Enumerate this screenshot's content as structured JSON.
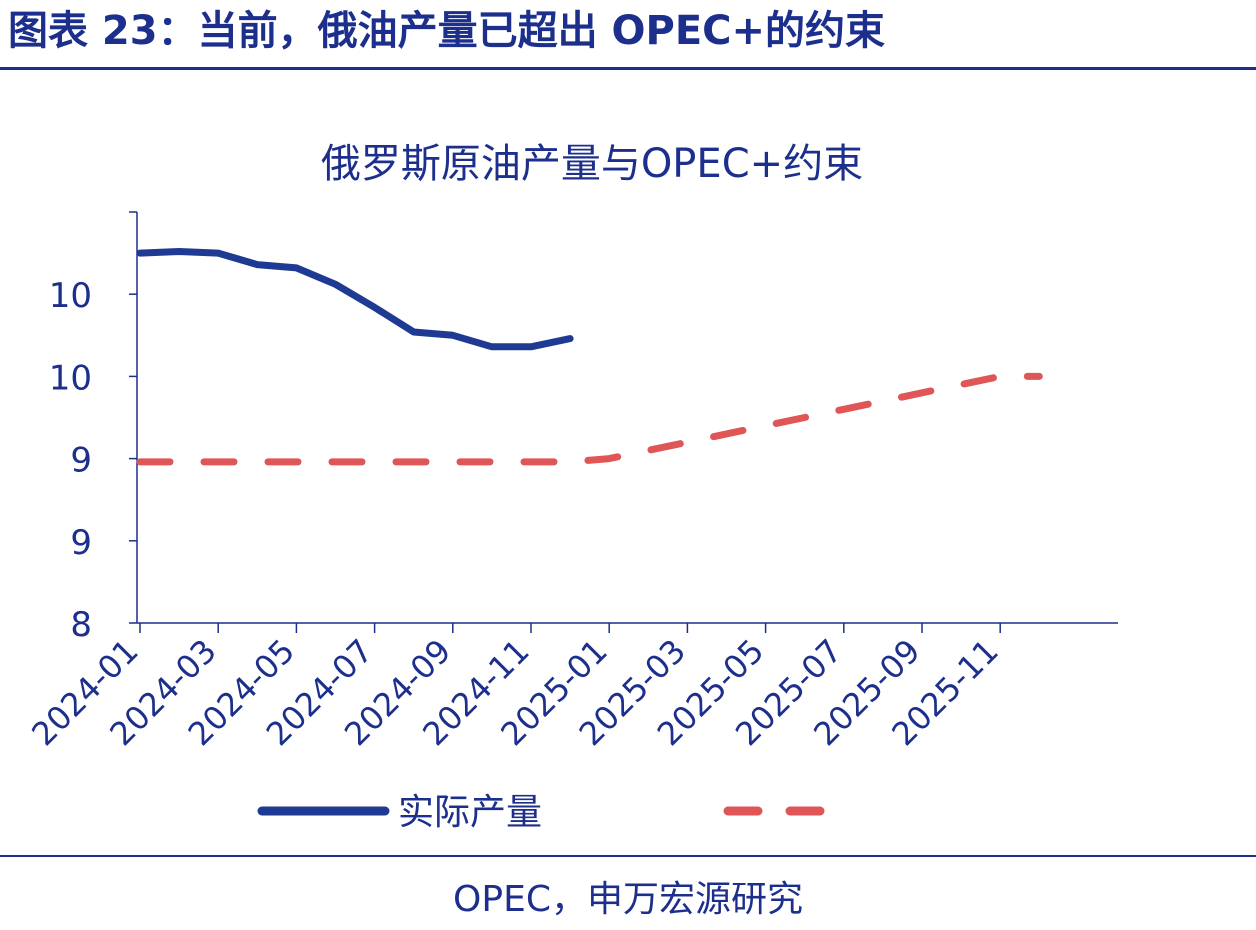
{
  "header": {
    "title": "图表 23：当前，俄油产量已超出 OPEC+的约束"
  },
  "source": "OPEC，申万宏源研究",
  "colors": {
    "primary": "#1c2f8c",
    "series_actual": "#1f3a93",
    "series_constraint": "#e05555"
  },
  "chart_data": {
    "type": "line",
    "title": "俄罗斯原油产量与OPEC+约束",
    "xlabel": "",
    "ylabel": "",
    "ylim": [
      8,
      10.5
    ],
    "yticks": [
      {
        "value": 8.0,
        "label": "8"
      },
      {
        "value": 8.5,
        "label": "9"
      },
      {
        "value": 9.0,
        "label": "9"
      },
      {
        "value": 9.5,
        "label": "10"
      },
      {
        "value": 10.0,
        "label": "10"
      }
    ],
    "xticks": [
      "2024-01",
      "2024-03",
      "2024-05",
      "2024-07",
      "2024-09",
      "2024-11",
      "2025-01",
      "2025-03",
      "2025-05",
      "2025-07",
      "2025-09",
      "2025-11"
    ],
    "x": [
      "2024-01",
      "2024-02",
      "2024-03",
      "2024-04",
      "2024-05",
      "2024-06",
      "2024-07",
      "2024-08",
      "2024-09",
      "2024-10",
      "2024-11",
      "2024-12",
      "2025-01",
      "2025-02",
      "2025-03",
      "2025-04",
      "2025-05",
      "2025-06",
      "2025-07",
      "2025-08",
      "2025-09",
      "2025-10",
      "2025-11",
      "2025-12"
    ],
    "series": [
      {
        "name": "实际产量",
        "style": "solid",
        "values": [
          10.25,
          10.26,
          10.25,
          10.18,
          10.16,
          10.06,
          9.92,
          9.77,
          9.75,
          9.68,
          9.68,
          9.73,
          null,
          null,
          null,
          null,
          null,
          null,
          null,
          null,
          null,
          null,
          null,
          null
        ]
      },
      {
        "name": "",
        "style": "dashed",
        "values": [
          8.98,
          8.98,
          8.98,
          8.98,
          8.98,
          8.98,
          8.98,
          8.98,
          8.98,
          8.98,
          8.98,
          8.98,
          9.0,
          9.05,
          9.1,
          9.15,
          9.2,
          9.25,
          9.3,
          9.35,
          9.4,
          9.45,
          9.5,
          9.5
        ]
      }
    ],
    "legend": "bottom",
    "grid": false
  }
}
